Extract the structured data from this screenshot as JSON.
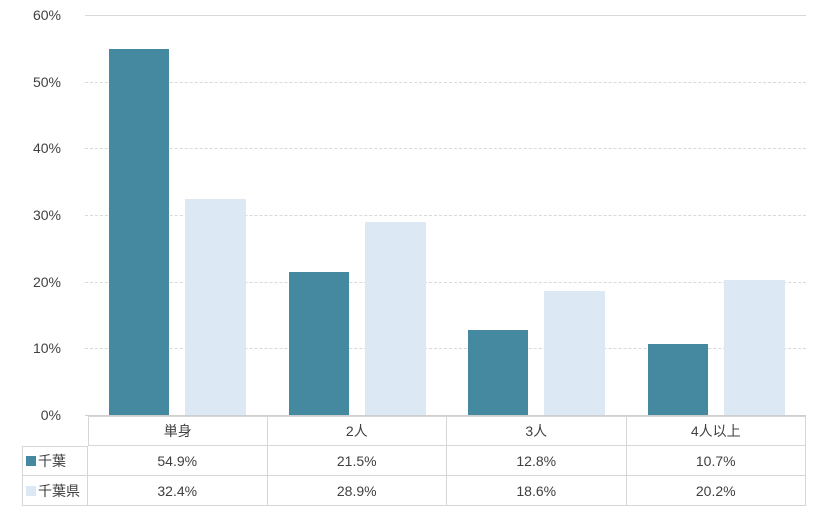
{
  "chart_data": {
    "type": "bar",
    "title": "",
    "categories": [
      "単身",
      "2人",
      "3人",
      "4人以上"
    ],
    "series": [
      {
        "name": "千葉",
        "color": "#4589a1",
        "values": [
          54.9,
          21.5,
          12.8,
          10.7
        ],
        "value_labels": [
          "54.9%",
          "21.5%",
          "12.8%",
          "10.7%"
        ]
      },
      {
        "name": "千葉県",
        "color": "#dce9f5",
        "values": [
          32.4,
          28.9,
          18.6,
          20.2
        ],
        "value_labels": [
          "32.4%",
          "28.9%",
          "18.6%",
          "20.2%"
        ]
      }
    ],
    "xlabel": "",
    "ylabel": "",
    "ylim": [
      0,
      60
    ],
    "y_ticks": [
      "0%",
      "10%",
      "20%",
      "30%",
      "40%",
      "50%",
      "60%"
    ],
    "grid": true,
    "gridline_color": "#d9d9d9",
    "legend_position": "data-table-left-column"
  }
}
